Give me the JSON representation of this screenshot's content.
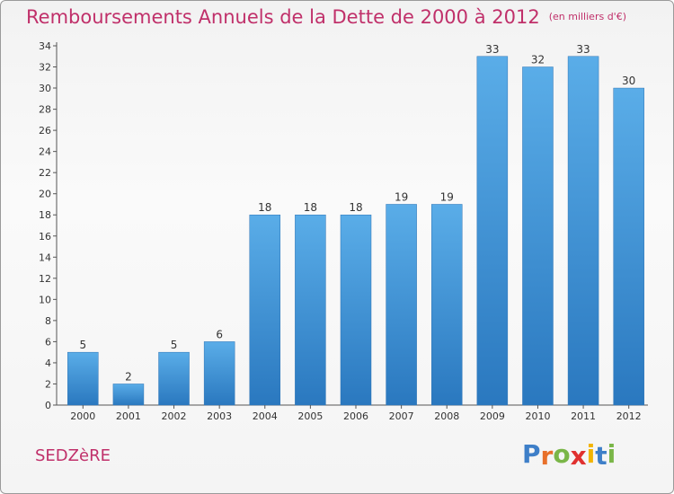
{
  "chart_data": {
    "type": "bar",
    "title": "Remboursements Annuels de la Dette de 2000 à 2012",
    "subtitle": "(en milliers d'€)",
    "xlabel": "",
    "ylabel": "",
    "categories": [
      "2000",
      "2001",
      "2002",
      "2003",
      "2004",
      "2005",
      "2006",
      "2007",
      "2008",
      "2009",
      "2010",
      "2011",
      "2012"
    ],
    "values": [
      5,
      2,
      5,
      6,
      18,
      18,
      18,
      19,
      19,
      33,
      32,
      33,
      30
    ],
    "ylim": [
      0,
      34
    ],
    "yticks": [
      0,
      2,
      4,
      6,
      8,
      10,
      12,
      14,
      16,
      18,
      20,
      22,
      24,
      26,
      28,
      30,
      32,
      34
    ],
    "grid": false,
    "bar_color": "#3d8fd6"
  },
  "footer": {
    "commune": "SEDZèRE"
  },
  "logo": {
    "letters": [
      {
        "char": "P",
        "color": "#3e7fc8"
      },
      {
        "char": "r",
        "color": "#e8702a"
      },
      {
        "char": "o",
        "color": "#7ab648"
      },
      {
        "char": "x",
        "color": "#e0302f"
      },
      {
        "char": "i",
        "color": "#f2b400"
      },
      {
        "char": "t",
        "color": "#3e7fc8"
      },
      {
        "char": "i",
        "color": "#7ab648"
      }
    ]
  }
}
